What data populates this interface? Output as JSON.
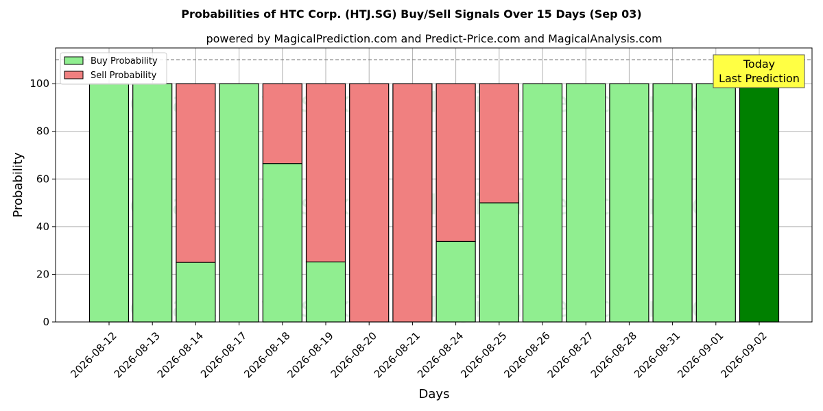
{
  "chart_data": {
    "type": "bar",
    "stacked": true,
    "title": "Probabilities of HTC Corp. (HTJ.SG) Buy/Sell Signals Over 15 Days (Sep 03)",
    "subtitle": "powered by MagicalPrediction.com and Predict-Price.com and MagicalAnalysis.com",
    "xlabel": "Days",
    "ylabel": "Probability",
    "ylim": [
      0,
      115
    ],
    "yticks": [
      0,
      20,
      40,
      60,
      80,
      100
    ],
    "reference_line": 110,
    "grid": true,
    "legend_position": "top-left",
    "categories": [
      "2026-08-12",
      "2026-08-13",
      "2026-08-14",
      "2026-08-17",
      "2026-08-18",
      "2026-08-19",
      "2026-08-20",
      "2026-08-21",
      "2026-08-24",
      "2026-08-25",
      "2026-08-26",
      "2026-08-27",
      "2026-08-28",
      "2026-08-31",
      "2026-09-01",
      "2026-09-02"
    ],
    "series": [
      {
        "name": "Buy Probability",
        "color": "#90ee90",
        "values": [
          100,
          100,
          25,
          100,
          66.5,
          25.2,
          0,
          0,
          33.8,
          50,
          100,
          100,
          100,
          100,
          100,
          100
        ]
      },
      {
        "name": "Sell Probability",
        "color": "#f08080",
        "values": [
          0,
          0,
          75,
          0,
          33.5,
          74.8,
          100,
          100,
          66.2,
          50,
          0,
          0,
          0,
          0,
          0,
          0
        ]
      }
    ],
    "highlight": {
      "index": 15,
      "color": "#008000"
    },
    "annotation": {
      "lines": [
        "Today",
        "Last Prediction"
      ],
      "color": "#ffff44"
    },
    "watermarks": [
      "MagicalAnalysis.com",
      "MagicalPrediction.com"
    ]
  }
}
